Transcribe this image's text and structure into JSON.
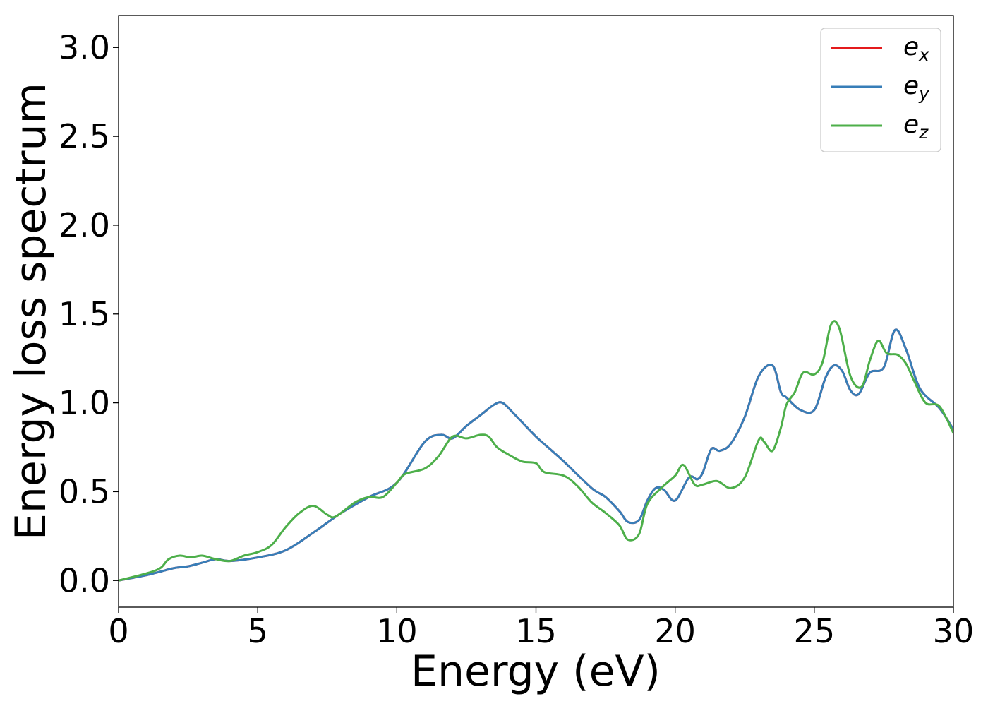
{
  "chart_data": {
    "type": "line",
    "title": "",
    "xlabel": "Energy (eV)",
    "ylabel": "Energy loss spectrum",
    "xlim": [
      0,
      30
    ],
    "ylim": [
      -0.15,
      3.18
    ],
    "xticks": [
      0,
      5,
      10,
      15,
      20,
      25,
      30
    ],
    "xtick_labels": [
      "0",
      "5",
      "10",
      "15",
      "20",
      "25",
      "30"
    ],
    "yticks": [
      0.0,
      0.5,
      1.0,
      1.5,
      2.0,
      2.5,
      3.0
    ],
    "ytick_labels": [
      "0.0",
      "0.5",
      "1.0",
      "1.5",
      "2.0",
      "2.5",
      "3.0"
    ],
    "grid": false,
    "legend_position": "top-right",
    "series": [
      {
        "name": "e",
        "subscript": "x",
        "color": "#e41a1c",
        "x": [
          0,
          1,
          1.5,
          2,
          2.5,
          3,
          3.5,
          4,
          5,
          6,
          7,
          8,
          9,
          10,
          11,
          11.6,
          12,
          12.5,
          13,
          13.5,
          13.8,
          14.2,
          15,
          15.5,
          16,
          17,
          17.5,
          18,
          18.3,
          18.7,
          19,
          19.3,
          19.6,
          20,
          20.5,
          20.8,
          21,
          21.3,
          21.6,
          22,
          22.5,
          23,
          23.5,
          23.8,
          24,
          24.5,
          25,
          25.4,
          25.7,
          26,
          26.3,
          26.6,
          27,
          27.5,
          27.9,
          28.3,
          28.8,
          29.5,
          30
        ],
        "y": [
          0,
          0.03,
          0.05,
          0.07,
          0.08,
          0.1,
          0.12,
          0.11,
          0.13,
          0.17,
          0.27,
          0.38,
          0.47,
          0.55,
          0.78,
          0.82,
          0.8,
          0.87,
          0.93,
          0.99,
          1.0,
          0.94,
          0.81,
          0.74,
          0.67,
          0.52,
          0.47,
          0.39,
          0.33,
          0.34,
          0.45,
          0.52,
          0.51,
          0.45,
          0.58,
          0.57,
          0.61,
          0.74,
          0.73,
          0.77,
          0.92,
          1.15,
          1.21,
          1.06,
          1.03,
          0.96,
          0.96,
          1.14,
          1.21,
          1.18,
          1.07,
          1.05,
          1.17,
          1.2,
          1.41,
          1.3,
          1.08,
          0.97,
          0.85
        ]
      },
      {
        "name": "e",
        "subscript": "y",
        "color": "#377eb8",
        "x": [
          0,
          1,
          1.5,
          2,
          2.5,
          3,
          3.5,
          4,
          5,
          6,
          7,
          8,
          9,
          10,
          11,
          11.6,
          12,
          12.5,
          13,
          13.5,
          13.8,
          14.2,
          15,
          15.5,
          16,
          17,
          17.5,
          18,
          18.3,
          18.7,
          19,
          19.3,
          19.6,
          20,
          20.5,
          20.8,
          21,
          21.3,
          21.6,
          22,
          22.5,
          23,
          23.5,
          23.8,
          24,
          24.5,
          25,
          25.4,
          25.7,
          26,
          26.3,
          26.6,
          27,
          27.5,
          27.9,
          28.3,
          28.8,
          29.5,
          30
        ],
        "y": [
          0,
          0.03,
          0.05,
          0.07,
          0.08,
          0.1,
          0.12,
          0.11,
          0.13,
          0.17,
          0.27,
          0.38,
          0.47,
          0.55,
          0.78,
          0.82,
          0.8,
          0.87,
          0.93,
          0.99,
          1.0,
          0.94,
          0.81,
          0.74,
          0.67,
          0.52,
          0.47,
          0.39,
          0.33,
          0.34,
          0.45,
          0.52,
          0.51,
          0.45,
          0.58,
          0.57,
          0.61,
          0.74,
          0.73,
          0.77,
          0.92,
          1.15,
          1.21,
          1.06,
          1.03,
          0.96,
          0.96,
          1.14,
          1.21,
          1.18,
          1.07,
          1.05,
          1.17,
          1.2,
          1.41,
          1.3,
          1.08,
          0.97,
          0.85
        ]
      },
      {
        "name": "e",
        "subscript": "z",
        "color": "#4daf4a",
        "x": [
          0,
          1,
          1.5,
          1.8,
          2.2,
          2.6,
          3,
          3.5,
          4,
          4.5,
          5,
          5.5,
          6,
          6.5,
          7,
          7.5,
          7.8,
          8.5,
          9,
          9.5,
          10,
          10.3,
          11,
          11.5,
          12,
          12.5,
          13,
          13.3,
          13.6,
          14,
          14.5,
          15,
          15.3,
          16,
          16.5,
          17,
          17.5,
          18,
          18.3,
          18.7,
          19,
          19.5,
          20,
          20.3,
          20.7,
          21,
          21.5,
          22,
          22.5,
          23,
          23.2,
          23.5,
          23.8,
          24,
          24.3,
          24.6,
          25,
          25.3,
          25.6,
          25.9,
          26.3,
          26.7,
          27,
          27.3,
          27.6,
          28,
          28.3,
          28.6,
          29,
          29.5,
          30
        ],
        "y": [
          0,
          0.04,
          0.07,
          0.12,
          0.14,
          0.13,
          0.14,
          0.12,
          0.11,
          0.14,
          0.16,
          0.2,
          0.3,
          0.38,
          0.42,
          0.37,
          0.36,
          0.44,
          0.47,
          0.47,
          0.55,
          0.6,
          0.63,
          0.7,
          0.81,
          0.8,
          0.82,
          0.81,
          0.75,
          0.71,
          0.67,
          0.66,
          0.61,
          0.59,
          0.53,
          0.44,
          0.38,
          0.31,
          0.23,
          0.26,
          0.43,
          0.52,
          0.59,
          0.65,
          0.54,
          0.54,
          0.56,
          0.52,
          0.58,
          0.79,
          0.78,
          0.73,
          0.86,
          0.99,
          1.06,
          1.17,
          1.16,
          1.23,
          1.44,
          1.42,
          1.15,
          1.09,
          1.24,
          1.35,
          1.28,
          1.27,
          1.22,
          1.12,
          1.0,
          0.98,
          0.83
        ]
      }
    ]
  }
}
